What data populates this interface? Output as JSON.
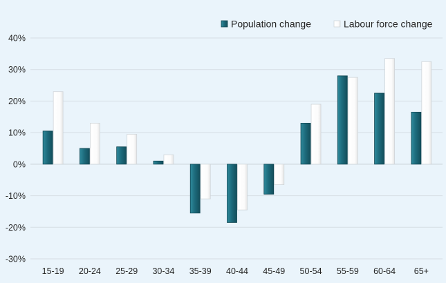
{
  "chart_data": {
    "type": "bar",
    "title": "",
    "xlabel": "",
    "ylabel": "",
    "categories": [
      "15-19",
      "20-24",
      "25-29",
      "30-34",
      "35-39",
      "40-44",
      "45-49",
      "50-54",
      "55-59",
      "60-64",
      "65+"
    ],
    "series": [
      {
        "name": "Population change",
        "color": "#1d6b7c",
        "values": [
          10.5,
          5.0,
          5.5,
          1.0,
          -15.5,
          -18.5,
          -9.5,
          13.0,
          28.0,
          22.5,
          16.5
        ]
      },
      {
        "name": "Labour force change",
        "color": "#ffffff",
        "values": [
          23.0,
          13.0,
          9.5,
          3.0,
          -11.0,
          -14.5,
          -6.5,
          19.0,
          27.5,
          33.5,
          32.5
        ]
      }
    ],
    "ylim": [
      -30,
      40
    ],
    "yticks": [
      -30,
      -20,
      -10,
      0,
      10,
      20,
      30,
      40
    ],
    "ytick_format": "%",
    "legend_position": "top-right",
    "grid": true
  }
}
